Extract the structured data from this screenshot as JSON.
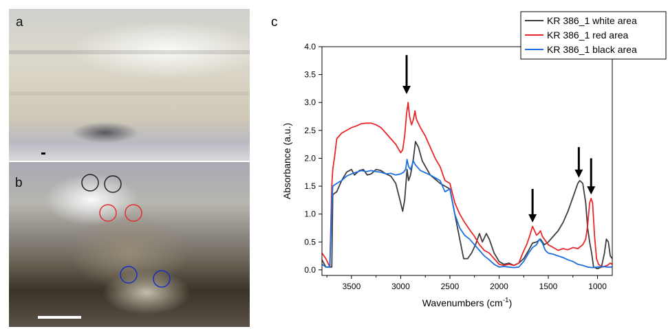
{
  "panels": {
    "a": "a",
    "b": "b",
    "c": "c"
  },
  "colors": {
    "white_area": "#3c3c3c",
    "red_area": "#e8262a",
    "black_area": "#1b6fe0",
    "marker_black": "#222222",
    "marker_red": "#e03030",
    "marker_blue": "#1a2fc0"
  },
  "photo_b_markers": {
    "black": [
      "white area",
      "white area"
    ],
    "red": [
      "red area",
      "red area"
    ],
    "blue": [
      "black area",
      "black area"
    ]
  },
  "chart_data": {
    "type": "line",
    "xlabel": "Wavenumbers (cm",
    "xlabel_sup": "-1",
    "xlabel_end": ")",
    "ylabel": "Absorbance (a.u.)",
    "xlim": [
      3800,
      850
    ],
    "ylim": [
      -0.1,
      4.0
    ],
    "x_reversed": true,
    "x_ticks": [
      3500,
      3000,
      2500,
      2000,
      1500,
      1000
    ],
    "x_tick_labels": [
      "3500",
      "3000",
      "2500",
      "2000",
      "1500",
      "1000"
    ],
    "y_ticks": [
      0.0,
      0.5,
      1.0,
      1.5,
      2.0,
      2.5,
      3.0,
      3.5,
      4.0
    ],
    "y_tick_labels": [
      "0.0",
      "0.5",
      "1.0",
      "1.5",
      "2.0",
      "2.5",
      "3.0",
      "3.5",
      "4.0"
    ],
    "legend_position": "top-right",
    "series": [
      {
        "name": "KR 386_1 white area",
        "color": "#3c3c3c",
        "points": [
          [
            3800,
            0.18
          ],
          [
            3760,
            0.05
          ],
          [
            3700,
            0.05
          ],
          [
            3690,
            1.35
          ],
          [
            3650,
            1.4
          ],
          [
            3600,
            1.6
          ],
          [
            3550,
            1.75
          ],
          [
            3500,
            1.8
          ],
          [
            3470,
            1.7
          ],
          [
            3420,
            1.78
          ],
          [
            3380,
            1.8
          ],
          [
            3340,
            1.7
          ],
          [
            3300,
            1.72
          ],
          [
            3250,
            1.8
          ],
          [
            3200,
            1.78
          ],
          [
            3150,
            1.72
          ],
          [
            3100,
            1.68
          ],
          [
            3050,
            1.55
          ],
          [
            3000,
            1.2
          ],
          [
            2980,
            1.05
          ],
          [
            2960,
            1.25
          ],
          [
            2935,
            1.8
          ],
          [
            2920,
            1.6
          ],
          [
            2900,
            1.7
          ],
          [
            2870,
            2.0
          ],
          [
            2850,
            2.3
          ],
          [
            2820,
            2.2
          ],
          [
            2780,
            1.95
          ],
          [
            2700,
            1.7
          ],
          [
            2600,
            1.55
          ],
          [
            2500,
            1.45
          ],
          [
            2450,
            1.0
          ],
          [
            2400,
            0.55
          ],
          [
            2360,
            0.2
          ],
          [
            2320,
            0.2
          ],
          [
            2280,
            0.3
          ],
          [
            2240,
            0.45
          ],
          [
            2200,
            0.65
          ],
          [
            2170,
            0.5
          ],
          [
            2130,
            0.65
          ],
          [
            2100,
            0.55
          ],
          [
            2050,
            0.3
          ],
          [
            2000,
            0.15
          ],
          [
            1950,
            0.1
          ],
          [
            1900,
            0.12
          ],
          [
            1850,
            0.08
          ],
          [
            1800,
            0.12
          ],
          [
            1750,
            0.2
          ],
          [
            1700,
            0.35
          ],
          [
            1660,
            0.48
          ],
          [
            1620,
            0.5
          ],
          [
            1580,
            0.55
          ],
          [
            1540,
            0.45
          ],
          [
            1500,
            0.5
          ],
          [
            1450,
            0.6
          ],
          [
            1400,
            0.7
          ],
          [
            1350,
            0.85
          ],
          [
            1300,
            1.05
          ],
          [
            1250,
            1.3
          ],
          [
            1200,
            1.55
          ],
          [
            1180,
            1.6
          ],
          [
            1150,
            1.55
          ],
          [
            1120,
            1.2
          ],
          [
            1100,
            0.75
          ],
          [
            1080,
            0.5
          ],
          [
            1060,
            0.3
          ],
          [
            1040,
            0.05
          ],
          [
            1000,
            0.02
          ],
          [
            960,
            0.05
          ],
          [
            930,
            0.3
          ],
          [
            910,
            0.55
          ],
          [
            890,
            0.5
          ],
          [
            870,
            0.25
          ],
          [
            850,
            0.2
          ]
        ]
      },
      {
        "name": "KR 386_1 red area",
        "color": "#e8262a",
        "points": [
          [
            3800,
            0.3
          ],
          [
            3760,
            0.2
          ],
          [
            3720,
            0.05
          ],
          [
            3700,
            1.5
          ],
          [
            3690,
            1.8
          ],
          [
            3670,
            2.05
          ],
          [
            3650,
            2.35
          ],
          [
            3600,
            2.45
          ],
          [
            3550,
            2.5
          ],
          [
            3500,
            2.55
          ],
          [
            3450,
            2.58
          ],
          [
            3400,
            2.62
          ],
          [
            3350,
            2.63
          ],
          [
            3300,
            2.63
          ],
          [
            3250,
            2.6
          ],
          [
            3200,
            2.55
          ],
          [
            3150,
            2.45
          ],
          [
            3100,
            2.35
          ],
          [
            3050,
            2.25
          ],
          [
            3000,
            2.1
          ],
          [
            2980,
            2.15
          ],
          [
            2960,
            2.4
          ],
          [
            2940,
            2.8
          ],
          [
            2925,
            3.0
          ],
          [
            2910,
            2.75
          ],
          [
            2890,
            2.6
          ],
          [
            2870,
            2.7
          ],
          [
            2855,
            2.85
          ],
          [
            2840,
            2.7
          ],
          [
            2800,
            2.55
          ],
          [
            2750,
            2.4
          ],
          [
            2700,
            2.2
          ],
          [
            2650,
            2.0
          ],
          [
            2600,
            1.85
          ],
          [
            2550,
            1.6
          ],
          [
            2500,
            1.55
          ],
          [
            2450,
            1.2
          ],
          [
            2400,
            1.0
          ],
          [
            2350,
            0.85
          ],
          [
            2300,
            0.72
          ],
          [
            2250,
            0.6
          ],
          [
            2200,
            0.45
          ],
          [
            2150,
            0.35
          ],
          [
            2100,
            0.3
          ],
          [
            2050,
            0.2
          ],
          [
            2000,
            0.1
          ],
          [
            1950,
            0.08
          ],
          [
            1900,
            0.1
          ],
          [
            1850,
            0.08
          ],
          [
            1800,
            0.12
          ],
          [
            1760,
            0.3
          ],
          [
            1720,
            0.45
          ],
          [
            1690,
            0.6
          ],
          [
            1660,
            0.78
          ],
          [
            1640,
            0.7
          ],
          [
            1620,
            0.62
          ],
          [
            1600,
            0.65
          ],
          [
            1580,
            0.7
          ],
          [
            1560,
            0.6
          ],
          [
            1540,
            0.55
          ],
          [
            1500,
            0.45
          ],
          [
            1450,
            0.4
          ],
          [
            1400,
            0.35
          ],
          [
            1350,
            0.38
          ],
          [
            1300,
            0.36
          ],
          [
            1250,
            0.4
          ],
          [
            1200,
            0.38
          ],
          [
            1150,
            0.45
          ],
          [
            1120,
            0.55
          ],
          [
            1100,
            0.8
          ],
          [
            1080,
            1.2
          ],
          [
            1065,
            1.28
          ],
          [
            1050,
            1.2
          ],
          [
            1030,
            0.6
          ],
          [
            1010,
            0.2
          ],
          [
            990,
            0.1
          ],
          [
            950,
            0.05
          ],
          [
            900,
            0.08
          ],
          [
            870,
            0.12
          ],
          [
            850,
            0.1
          ]
        ]
      },
      {
        "name": "KR 386_1 black area",
        "color": "#1b6fe0",
        "points": [
          [
            3800,
            0.1
          ],
          [
            3760,
            0.05
          ],
          [
            3720,
            0.05
          ],
          [
            3700,
            1.2
          ],
          [
            3690,
            1.5
          ],
          [
            3650,
            1.55
          ],
          [
            3600,
            1.6
          ],
          [
            3550,
            1.68
          ],
          [
            3500,
            1.72
          ],
          [
            3450,
            1.75
          ],
          [
            3400,
            1.78
          ],
          [
            3350,
            1.76
          ],
          [
            3300,
            1.78
          ],
          [
            3250,
            1.76
          ],
          [
            3200,
            1.75
          ],
          [
            3150,
            1.72
          ],
          [
            3100,
            1.73
          ],
          [
            3050,
            1.7
          ],
          [
            3000,
            1.72
          ],
          [
            2970,
            1.75
          ],
          [
            2950,
            1.8
          ],
          [
            2935,
            1.98
          ],
          [
            2920,
            1.85
          ],
          [
            2900,
            1.8
          ],
          [
            2870,
            1.95
          ],
          [
            2850,
            1.88
          ],
          [
            2800,
            1.78
          ],
          [
            2700,
            1.7
          ],
          [
            2600,
            1.6
          ],
          [
            2550,
            1.4
          ],
          [
            2500,
            1.45
          ],
          [
            2450,
            1.0
          ],
          [
            2400,
            0.75
          ],
          [
            2350,
            0.62
          ],
          [
            2300,
            0.55
          ],
          [
            2250,
            0.45
          ],
          [
            2200,
            0.35
          ],
          [
            2150,
            0.25
          ],
          [
            2100,
            0.18
          ],
          [
            2050,
            0.1
          ],
          [
            2000,
            0.05
          ],
          [
            1950,
            0.06
          ],
          [
            1900,
            0.05
          ],
          [
            1850,
            0.04
          ],
          [
            1800,
            0.05
          ],
          [
            1750,
            0.15
          ],
          [
            1700,
            0.3
          ],
          [
            1660,
            0.4
          ],
          [
            1620,
            0.45
          ],
          [
            1590,
            0.55
          ],
          [
            1560,
            0.48
          ],
          [
            1530,
            0.35
          ],
          [
            1500,
            0.3
          ],
          [
            1450,
            0.28
          ],
          [
            1400,
            0.25
          ],
          [
            1350,
            0.22
          ],
          [
            1300,
            0.18
          ],
          [
            1250,
            0.15
          ],
          [
            1200,
            0.1
          ],
          [
            1150,
            0.08
          ],
          [
            1100,
            0.05
          ],
          [
            1050,
            0.04
          ],
          [
            1000,
            0.05
          ],
          [
            950,
            0.06
          ],
          [
            900,
            0.05
          ],
          [
            850,
            0.05
          ]
        ]
      }
    ],
    "annotations": [
      {
        "type": "arrow",
        "x": 2940,
        "y_top": 3.85,
        "y_tip": 3.15
      },
      {
        "type": "arrow",
        "x": 1660,
        "y_top": 1.45,
        "y_tip": 0.85
      },
      {
        "type": "arrow",
        "x": 1190,
        "y_top": 2.2,
        "y_tip": 1.65
      },
      {
        "type": "arrow",
        "x": 1065,
        "y_top": 2.0,
        "y_tip": 1.35
      }
    ]
  }
}
